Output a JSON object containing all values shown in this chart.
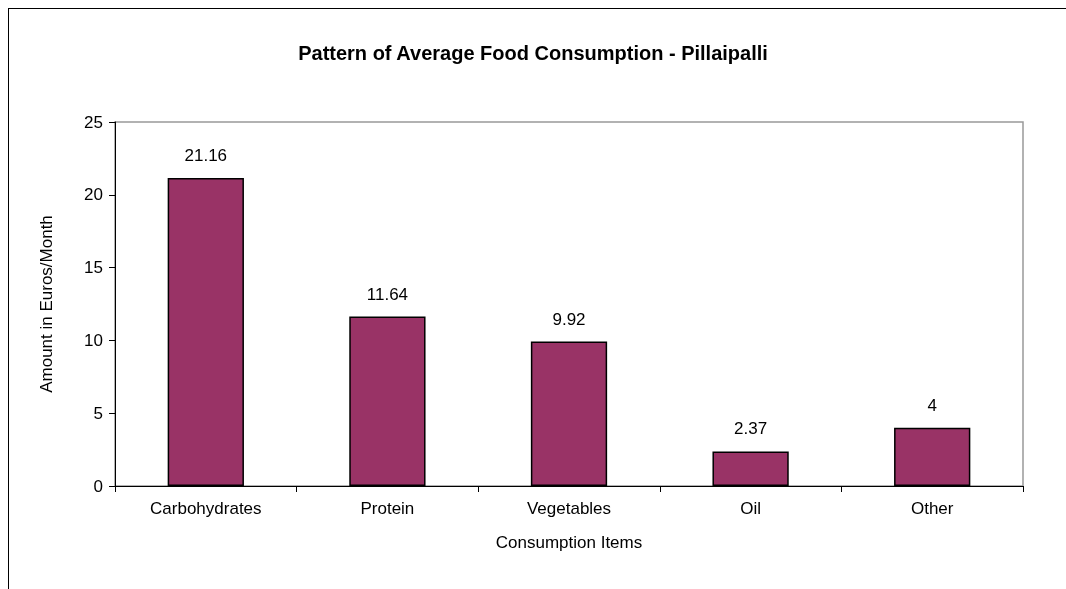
{
  "chart_data": {
    "type": "bar",
    "title": "Pattern of Average Food Consumption - Pillaipalli",
    "xlabel": "Consumption Items",
    "ylabel": "Amount in Euros/Month",
    "categories": [
      "Carbohydrates",
      "Protein",
      "Vegetables",
      "Oil",
      "Other"
    ],
    "values": [
      21.16,
      11.64,
      9.92,
      2.37,
      4
    ],
    "color": "#993366",
    "ylim": [
      0,
      25
    ],
    "yticks": [
      0,
      5,
      10,
      15,
      20,
      25
    ],
    "grid": false,
    "data_labels": true
  }
}
